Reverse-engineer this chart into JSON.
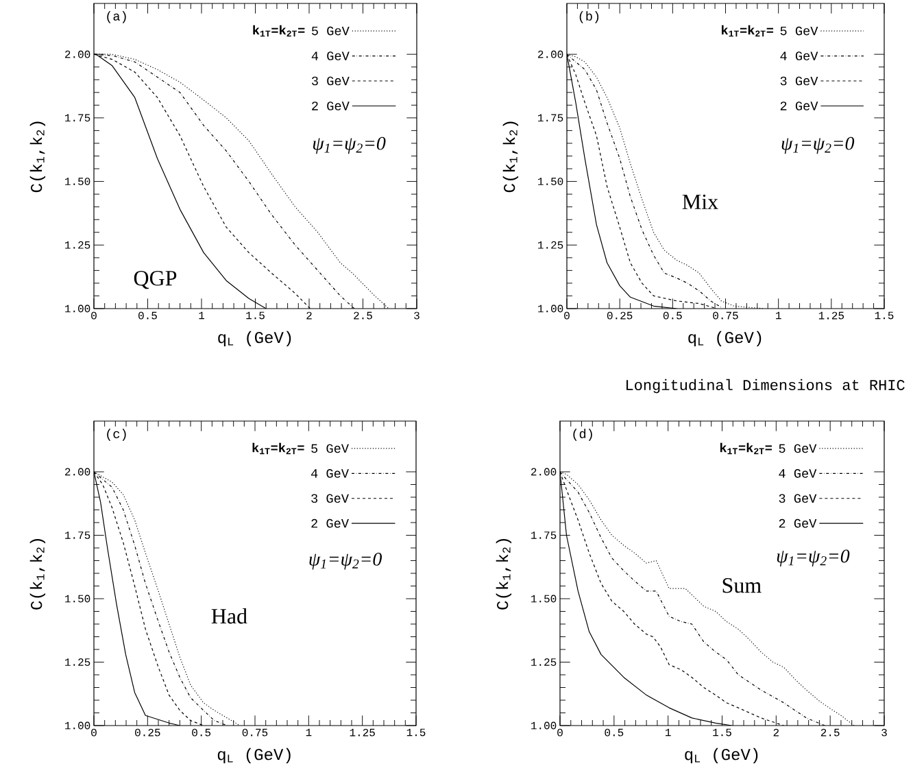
{
  "chart_data": [
    {
      "type": "line",
      "xlabel": "q$_{L}$ (GeV)",
      "ylabel": "C(k$_{1}$,k$_{2}$)",
      "xlim": [
        0,
        3
      ],
      "ylim": [
        1,
        2.2
      ],
      "xticks": [
        0,
        0.5,
        1,
        1.5,
        2,
        2.5,
        3
      ],
      "yticks": [
        {
          "value": 1,
          "label": "1.00"
        },
        {
          "value": 1.25,
          "label": "1.25"
        },
        {
          "value": 1.5,
          "label": "1.50"
        },
        {
          "value": 1.75,
          "label": "1.75"
        },
        {
          "value": 2,
          "label": "2.00"
        }
      ],
      "legend": "top right",
      "legend_title": "k$_{1T}$=k$_{2T}$=",
      "annotations": [
        "(a)",
        "ψ$_{1}$=ψ$_{2}$=0",
        "QGP"
      ],
      "series": [
        {
          "name": "5 GeV",
          "color": "#000000",
          "line_style": "dotted",
          "x": [
            0,
            0.17,
            0.38,
            0.59,
            0.8,
            1.02,
            1.23,
            1.44,
            1.65,
            1.87,
            2.08,
            2.29,
            2.4,
            2.61,
            2.74
          ],
          "values": [
            2.0,
            2.0,
            1.98,
            1.94,
            1.89,
            1.82,
            1.75,
            1.66,
            1.53,
            1.4,
            1.3,
            1.18,
            1.14,
            1.05,
            1.0
          ]
        },
        {
          "name": "4 GeV",
          "color": "#000000",
          "line_style": "dashdotted",
          "x": [
            0,
            0.17,
            0.38,
            0.59,
            0.8,
            1.02,
            1.23,
            1.44,
            1.65,
            1.87,
            2.08,
            2.29,
            2.42
          ],
          "values": [
            2.0,
            1.995,
            1.97,
            1.91,
            1.85,
            1.72,
            1.62,
            1.5,
            1.37,
            1.25,
            1.15,
            1.05,
            1.0
          ]
        },
        {
          "name": "3 GeV",
          "color": "#000000",
          "line_style": "dashed",
          "x": [
            0,
            0.17,
            0.38,
            0.59,
            0.8,
            1.02,
            1.23,
            1.44,
            1.65,
            1.87,
            2.01
          ],
          "values": [
            2.0,
            1.98,
            1.93,
            1.83,
            1.68,
            1.48,
            1.32,
            1.22,
            1.14,
            1.06,
            1.0
          ]
        },
        {
          "name": "2 GeV",
          "color": "#000000",
          "line_style": "solid",
          "x": [
            0,
            0.02,
            0.17,
            0.38,
            0.59,
            0.8,
            1.02,
            1.23,
            1.44,
            1.6
          ],
          "values": [
            2.0,
            2.0,
            1.955,
            1.83,
            1.59,
            1.39,
            1.22,
            1.11,
            1.04,
            1.0
          ]
        }
      ]
    },
    {
      "type": "line",
      "xlabel": "q$_{L}$ (GeV)",
      "ylabel": "C(k$_{1}$,k$_{2}$)",
      "xlim": [
        0,
        1.5
      ],
      "ylim": [
        1,
        2.2
      ],
      "xticks": [
        0,
        0.25,
        0.5,
        0.75,
        1,
        1.25,
        1.5
      ],
      "yticks": [
        {
          "value": 1,
          "label": "1.00"
        },
        {
          "value": 1.25,
          "label": "1.25"
        },
        {
          "value": 1.5,
          "label": "1.50"
        },
        {
          "value": 1.75,
          "label": "1.75"
        },
        {
          "value": 2,
          "label": "2.00"
        }
      ],
      "legend": "top right",
      "legend_title": "k$_{1T}$=k$_{2T}$=",
      "annotations": [
        "(b)",
        "ψ$_{1}$=ψ$_{2}$=0",
        "Mix"
      ],
      "series": [
        {
          "name": "5 GeV",
          "color": "#000000",
          "line_style": "dotted",
          "x": [
            0,
            0.042,
            0.085,
            0.14,
            0.19,
            0.25,
            0.3,
            0.355,
            0.41,
            0.46,
            0.52,
            0.57,
            0.625,
            0.68,
            0.73,
            0.79,
            0.93
          ],
          "values": [
            2.0,
            1.99,
            1.97,
            1.91,
            1.83,
            1.71,
            1.57,
            1.43,
            1.3,
            1.23,
            1.19,
            1.17,
            1.14,
            1.08,
            1.03,
            1.01,
            1.0
          ]
        },
        {
          "name": "4 GeV",
          "color": "#000000",
          "line_style": "dashdotted",
          "x": [
            0,
            0.042,
            0.085,
            0.14,
            0.19,
            0.25,
            0.3,
            0.355,
            0.41,
            0.46,
            0.52,
            0.57,
            0.625,
            0.68,
            0.73
          ],
          "values": [
            2.0,
            1.97,
            1.94,
            1.86,
            1.73,
            1.59,
            1.44,
            1.31,
            1.21,
            1.14,
            1.12,
            1.1,
            1.07,
            1.03,
            1.005
          ]
        },
        {
          "name": "3 GeV",
          "color": "#000000",
          "line_style": "dashed",
          "x": [
            0,
            0.042,
            0.085,
            0.14,
            0.19,
            0.25,
            0.3,
            0.355,
            0.41,
            0.52,
            0.625,
            0.71
          ],
          "values": [
            2.0,
            1.92,
            1.81,
            1.68,
            1.48,
            1.32,
            1.18,
            1.1,
            1.05,
            1.03,
            1.02,
            1.0
          ]
        },
        {
          "name": "2 GeV",
          "color": "#000000",
          "line_style": "solid",
          "x": [
            0,
            0.042,
            0.085,
            0.14,
            0.19,
            0.25,
            0.3,
            0.41,
            0.52
          ],
          "values": [
            2.0,
            1.81,
            1.59,
            1.33,
            1.18,
            1.09,
            1.045,
            1.01,
            1.0
          ]
        }
      ]
    },
    {
      "type": "line",
      "xlabel": "q$_{L}$ (GeV)",
      "ylabel": "C(k$_{1}$,k$_{2}$)",
      "xlim": [
        0,
        1.5
      ],
      "ylim": [
        1,
        2.2
      ],
      "xticks": [
        0,
        0.25,
        0.5,
        0.75,
        1,
        1.25,
        1.5
      ],
      "yticks": [
        {
          "value": 1,
          "label": "1.00"
        },
        {
          "value": 1.25,
          "label": "1.25"
        },
        {
          "value": 1.5,
          "label": "1.50"
        },
        {
          "value": 1.75,
          "label": "1.75"
        },
        {
          "value": 2,
          "label": "2.00"
        }
      ],
      "legend": "top right",
      "legend_title": "k$_{1T}$=k$_{2T}$=",
      "annotations": [
        "(c)",
        "ψ$_{1}$=ψ$_{2}$=0",
        "Had"
      ],
      "series": [
        {
          "name": "5 GeV",
          "color": "#000000",
          "line_style": "dotted",
          "x": [
            0,
            0.041,
            0.084,
            0.137,
            0.19,
            0.24,
            0.3,
            0.35,
            0.4,
            0.45,
            0.51,
            0.56,
            0.62,
            0.68
          ],
          "values": [
            2.0,
            1.98,
            1.96,
            1.91,
            1.81,
            1.68,
            1.53,
            1.4,
            1.27,
            1.16,
            1.09,
            1.06,
            1.03,
            1.0
          ]
        },
        {
          "name": "4 GeV",
          "color": "#000000",
          "line_style": "dashdotted",
          "x": [
            0,
            0.041,
            0.084,
            0.137,
            0.19,
            0.24,
            0.3,
            0.35,
            0.4,
            0.45,
            0.51,
            0.56,
            0.62
          ],
          "values": [
            2.0,
            1.97,
            1.94,
            1.85,
            1.71,
            1.56,
            1.41,
            1.29,
            1.19,
            1.11,
            1.06,
            1.02,
            1.0
          ]
        },
        {
          "name": "3 GeV",
          "color": "#000000",
          "line_style": "dashed",
          "x": [
            0,
            0.041,
            0.084,
            0.137,
            0.19,
            0.24,
            0.3,
            0.35,
            0.4,
            0.45,
            0.51
          ],
          "values": [
            2.0,
            1.95,
            1.86,
            1.72,
            1.55,
            1.38,
            1.23,
            1.12,
            1.06,
            1.02,
            1.0
          ]
        },
        {
          "name": "2 GeV",
          "color": "#000000",
          "line_style": "solid",
          "x": [
            0,
            0.031,
            0.063,
            0.105,
            0.148,
            0.19,
            0.24,
            0.35,
            0.4
          ],
          "values": [
            2.0,
            1.88,
            1.7,
            1.48,
            1.28,
            1.13,
            1.04,
            1.01,
            1.0
          ]
        }
      ]
    },
    {
      "type": "line",
      "title": "Longitudinal Dimensions at RHIC",
      "xlabel": "q$_{L}$ (GeV)",
      "ylabel": "C(k$_{1}$,k$_{2}$)",
      "xlim": [
        0,
        3
      ],
      "ylim": [
        1,
        2.2
      ],
      "xticks": [
        0,
        0.5,
        1,
        1.5,
        2,
        2.5,
        3
      ],
      "yticks": [
        {
          "value": 1,
          "label": "1.00"
        },
        {
          "value": 1.25,
          "label": "1.25"
        },
        {
          "value": 1.5,
          "label": "1.50"
        },
        {
          "value": 1.75,
          "label": "1.75"
        },
        {
          "value": 2,
          "label": "2.00"
        }
      ],
      "legend": "top right",
      "legend_title": "k$_{1T}$=k$_{2T}$=",
      "annotations": [
        "(d)",
        "ψ$_{1}$=ψ$_{2}$=0",
        "Sum"
      ],
      "series": [
        {
          "name": "5 GeV",
          "color": "#000000",
          "line_style": "dotted",
          "x": [
            0,
            0.06,
            0.167,
            0.27,
            0.38,
            0.48,
            0.59,
            0.69,
            0.8,
            0.89,
            1.01,
            1.16,
            1.33,
            1.44,
            1.54,
            1.65,
            1.75,
            1.86,
            1.97,
            2.07,
            2.18,
            2.28,
            2.39,
            2.49,
            2.6,
            2.72
          ],
          "values": [
            2.0,
            1.99,
            1.95,
            1.89,
            1.81,
            1.75,
            1.71,
            1.68,
            1.64,
            1.65,
            1.54,
            1.54,
            1.47,
            1.45,
            1.41,
            1.38,
            1.34,
            1.29,
            1.25,
            1.23,
            1.18,
            1.14,
            1.1,
            1.07,
            1.04,
            1.0
          ]
        },
        {
          "name": "4 GeV",
          "color": "#000000",
          "line_style": "dashdotted",
          "x": [
            0,
            0.06,
            0.167,
            0.27,
            0.38,
            0.48,
            0.59,
            0.69,
            0.8,
            0.89,
            1.01,
            1.12,
            1.22,
            1.33,
            1.44,
            1.54,
            1.65,
            1.86,
            2.07,
            2.28,
            2.45
          ],
          "values": [
            2.0,
            1.97,
            1.92,
            1.84,
            1.74,
            1.66,
            1.61,
            1.57,
            1.53,
            1.53,
            1.43,
            1.41,
            1.4,
            1.33,
            1.29,
            1.26,
            1.2,
            1.14,
            1.09,
            1.03,
            1.0
          ]
        },
        {
          "name": "3 GeV",
          "color": "#000000",
          "line_style": "dashed",
          "x": [
            0,
            0.06,
            0.167,
            0.27,
            0.38,
            0.48,
            0.59,
            0.69,
            0.8,
            0.86,
            0.93,
            1.01,
            1.12,
            1.22,
            1.33,
            1.44,
            1.54,
            1.65,
            1.86,
            2.07
          ],
          "values": [
            2.0,
            1.93,
            1.81,
            1.68,
            1.56,
            1.49,
            1.45,
            1.4,
            1.36,
            1.35,
            1.31,
            1.24,
            1.22,
            1.19,
            1.15,
            1.12,
            1.09,
            1.07,
            1.03,
            1.0
          ]
        },
        {
          "name": "2 GeV",
          "color": "#000000",
          "line_style": "solid",
          "x": [
            0,
            0.06,
            0.167,
            0.27,
            0.38,
            0.59,
            0.8,
            1.01,
            1.22,
            1.44,
            1.59
          ],
          "values": [
            2.0,
            1.75,
            1.53,
            1.37,
            1.28,
            1.19,
            1.12,
            1.07,
            1.03,
            1.01,
            1.0
          ]
        }
      ]
    }
  ]
}
